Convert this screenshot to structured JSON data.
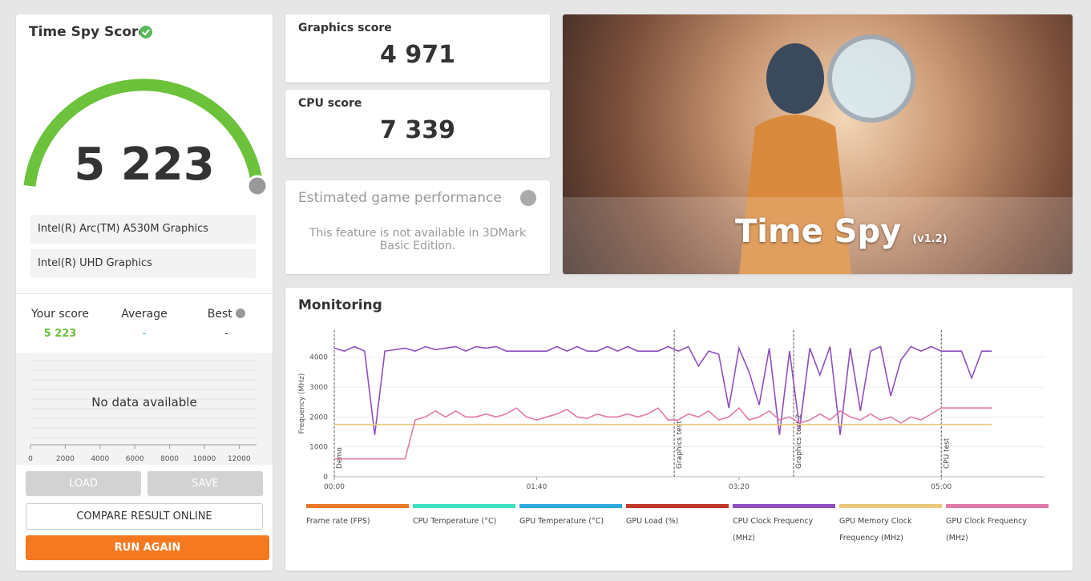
{
  "score_card": {
    "title": "Time Spy Score",
    "score": "5 223",
    "gpus": [
      "Intel(R) Arc(TM) A530M Graphics",
      "Intel(R) UHD Graphics"
    ],
    "comparison": {
      "your_score_label": "Your score",
      "your_score": "5 223",
      "average_label": "Average",
      "average": "-",
      "best_label": "Best",
      "best": "-"
    }
  },
  "distribution": {
    "message": "No data available",
    "xlim": [
      0,
      13000
    ],
    "xticks": [
      0,
      2000,
      4000,
      6000,
      8000,
      10000,
      12000
    ]
  },
  "buttons": {
    "load": "LOAD",
    "save": "SAVE",
    "compare": "COMPARE RESULT ONLINE",
    "run_again": "RUN AGAIN"
  },
  "scores": [
    {
      "label": "Graphics score",
      "value": "4 971"
    },
    {
      "label": "CPU score",
      "value": "7 339"
    }
  ],
  "estimated": {
    "title": "Estimated game performance",
    "message": "This feature is not available in 3DMark Basic Edition."
  },
  "hero": {
    "title": "Time Spy",
    "version": "(v1.2)"
  },
  "chart_data": {
    "type": "line",
    "title": "Monitoring",
    "y_label": "Frequency (MHz)",
    "x": [
      0,
      5,
      10,
      15,
      20,
      25,
      30,
      35,
      40,
      45,
      50,
      55,
      60,
      65,
      70,
      75,
      80,
      85,
      90,
      95,
      100,
      105,
      110,
      115,
      120,
      125,
      130,
      135,
      140,
      145,
      150,
      155,
      160,
      165,
      170,
      175,
      180,
      185,
      190,
      195,
      200,
      205,
      210,
      215,
      220,
      225,
      230,
      235,
      240,
      245,
      250,
      255,
      260,
      265,
      270,
      275,
      280,
      285,
      290,
      295,
      300,
      305,
      310,
      315,
      320,
      325
    ],
    "xlim": [
      0,
      351
    ],
    "xticks": [
      {
        "value": 0,
        "label": "00:00"
      },
      {
        "value": 100,
        "label": "01:40"
      },
      {
        "value": 200,
        "label": "03:20"
      },
      {
        "value": 300,
        "label": "05:00"
      }
    ],
    "ylim": [
      0,
      4900
    ],
    "yticks": [
      0,
      1000,
      2000,
      3000,
      4000
    ],
    "grid": true,
    "markers": [
      {
        "x": 0,
        "label": "Demo"
      },
      {
        "x": 168,
        "label": "Graphics test"
      },
      {
        "x": 227,
        "label": "Graphics test 2"
      },
      {
        "x": 300,
        "label": "CPU test"
      }
    ],
    "series": [
      {
        "name": "Frame rate (FPS)",
        "color": "#e8782a",
        "values": [
          null,
          null,
          null,
          null,
          null,
          null,
          null,
          null,
          null,
          null,
          null,
          null,
          null,
          null,
          null,
          null,
          null,
          null,
          null,
          null,
          null,
          null,
          null,
          null,
          null,
          null,
          null,
          null,
          null,
          null,
          null,
          null,
          null,
          null,
          null,
          null,
          null,
          null,
          null,
          null,
          null,
          null,
          null,
          null,
          null,
          null,
          null,
          null,
          null,
          null,
          null,
          null,
          null,
          null,
          null,
          null,
          null,
          null,
          null,
          null,
          null,
          null,
          null,
          null,
          null,
          null
        ]
      },
      {
        "name": "CPU Temperature (°C)",
        "color": "#3de0c0",
        "values": [
          null,
          null,
          null,
          null,
          null,
          null,
          null,
          null,
          null,
          null,
          null,
          null,
          null,
          null,
          null,
          null,
          null,
          null,
          null,
          null,
          null,
          null,
          null,
          null,
          null,
          null,
          null,
          null,
          null,
          null,
          null,
          null,
          null,
          null,
          null,
          null,
          null,
          null,
          null,
          null,
          null,
          null,
          null,
          null,
          null,
          null,
          null,
          null,
          null,
          null,
          null,
          null,
          null,
          null,
          null,
          null,
          null,
          null,
          null,
          null,
          null,
          null,
          null,
          null,
          null,
          null
        ]
      },
      {
        "name": "GPU Temperature (°C)",
        "color": "#2fa8e0",
        "values": [
          null,
          null,
          null,
          null,
          null,
          null,
          null,
          null,
          null,
          null,
          null,
          null,
          null,
          null,
          null,
          null,
          null,
          null,
          null,
          null,
          null,
          null,
          null,
          null,
          null,
          null,
          null,
          null,
          null,
          null,
          null,
          null,
          null,
          null,
          null,
          null,
          null,
          null,
          null,
          null,
          null,
          null,
          null,
          null,
          null,
          null,
          null,
          null,
          null,
          null,
          null,
          null,
          null,
          null,
          null,
          null,
          null,
          null,
          null,
          null,
          null,
          null,
          null,
          null,
          null,
          null
        ]
      },
      {
        "name": "GPU Load (%)",
        "color": "#c0392b",
        "values": [
          null,
          null,
          null,
          null,
          null,
          null,
          null,
          null,
          null,
          null,
          null,
          null,
          null,
          null,
          null,
          null,
          null,
          null,
          null,
          null,
          null,
          null,
          null,
          null,
          null,
          null,
          null,
          null,
          null,
          null,
          null,
          null,
          null,
          null,
          null,
          null,
          null,
          null,
          null,
          null,
          null,
          null,
          null,
          null,
          null,
          null,
          null,
          null,
          null,
          null,
          null,
          null,
          null,
          null,
          null,
          null,
          null,
          null,
          null,
          null,
          null,
          null,
          null,
          null,
          null,
          null
        ]
      },
      {
        "name": "CPU Clock Frequency (MHz)",
        "color": "#8e4fbf",
        "values": [
          4300,
          4200,
          4350,
          4200,
          1400,
          4200,
          4250,
          4300,
          4200,
          4350,
          4250,
          4300,
          4350,
          4200,
          4350,
          4300,
          4350,
          4200,
          4200,
          4200,
          4200,
          4200,
          4350,
          4200,
          4350,
          4200,
          4200,
          4350,
          4200,
          4350,
          4200,
          4200,
          4200,
          4350,
          4200,
          4350,
          3700,
          4200,
          4100,
          2300,
          4300,
          3500,
          2400,
          4300,
          1400,
          4200,
          1600,
          4300,
          3400,
          4350,
          1400,
          4300,
          2200,
          4200,
          4350,
          2700,
          3900,
          4350,
          4200,
          4350,
          4200,
          4200,
          4200,
          3300,
          4200,
          4200
        ]
      },
      {
        "name": "GPU Memory Clock Frequency (MHz)",
        "color": "#e8c97a",
        "values": [
          1750,
          1750,
          1750,
          1750,
          1750,
          1750,
          1750,
          1750,
          1750,
          1750,
          1750,
          1750,
          1750,
          1750,
          1750,
          1750,
          1750,
          1750,
          1750,
          1750,
          1750,
          1750,
          1750,
          1750,
          1750,
          1750,
          1750,
          1750,
          1750,
          1750,
          1750,
          1750,
          1750,
          1750,
          1750,
          1750,
          1750,
          1750,
          1750,
          1750,
          1750,
          1750,
          1750,
          1750,
          1750,
          1750,
          1750,
          1750,
          1750,
          1750,
          1750,
          1750,
          1750,
          1750,
          1750,
          1750,
          1750,
          1750,
          1750,
          1750,
          1750,
          1750,
          1750,
          1750,
          1750,
          1750
        ]
      },
      {
        "name": "GPU Clock Frequency (MHz)",
        "color": "#e07aa8",
        "values": [
          600,
          600,
          600,
          600,
          600,
          600,
          600,
          600,
          1900,
          2000,
          2200,
          2000,
          2200,
          2000,
          2000,
          2100,
          2000,
          2100,
          2300,
          2000,
          1900,
          2000,
          2100,
          2250,
          2000,
          1950,
          2100,
          2000,
          2000,
          2100,
          2000,
          2100,
          2300,
          1900,
          1900,
          2100,
          2000,
          2200,
          1900,
          2000,
          2300,
          1900,
          2000,
          2200,
          1900,
          2000,
          1800,
          1900,
          2100,
          1900,
          2200,
          2000,
          1900,
          2100,
          1900,
          2000,
          1800,
          2000,
          1900,
          2100,
          2300,
          2300,
          2300,
          2300,
          2300,
          2300
        ]
      }
    ]
  }
}
